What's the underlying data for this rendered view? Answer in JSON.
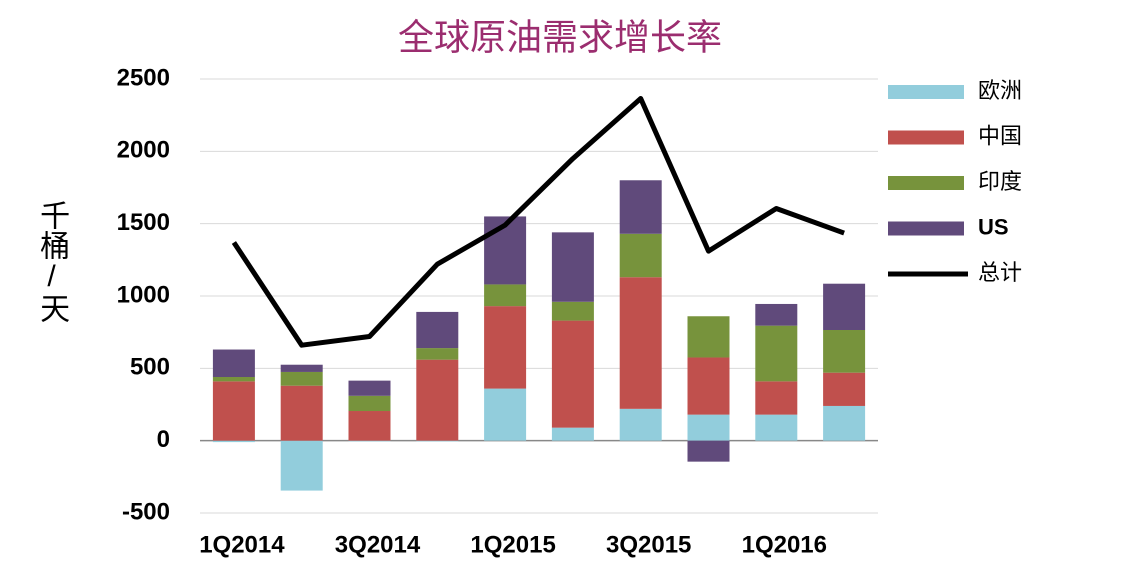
{
  "chart_data": {
    "type": "bar",
    "stacked": true,
    "title": "全球原油需求增长率",
    "y_label": "千桶/天",
    "categories": [
      "1Q2014",
      null,
      "3Q2014",
      null,
      "1Q2015",
      null,
      "3Q2015",
      null,
      "1Q2016",
      null
    ],
    "series": [
      {
        "name": "欧洲",
        "color": "#92cddc",
        "values": [
          -10,
          -345,
          -5,
          -5,
          360,
          90,
          220,
          180,
          180,
          240
        ]
      },
      {
        "name": "中国",
        "color": "#c0504d",
        "values": [
          410,
          380,
          205,
          560,
          570,
          740,
          910,
          395,
          230,
          230
        ]
      },
      {
        "name": "印度",
        "color": "#77933c",
        "values": [
          30,
          95,
          105,
          80,
          150,
          130,
          300,
          285,
          385,
          295
        ]
      },
      {
        "name": "US",
        "color": "#604a7b",
        "values": [
          190,
          50,
          105,
          250,
          470,
          480,
          370,
          -145,
          150,
          320
        ]
      },
      {
        "name": "总计",
        "color": "#000000",
        "type": "line",
        "values": [
          1370,
          660,
          720,
          1220,
          1490,
          1950,
          2365,
          1310,
          1605,
          1435
        ]
      }
    ],
    "ylim": [
      -500,
      2500
    ],
    "yticks": [
      -500,
      0,
      500,
      1000,
      1500,
      2000,
      2500
    ],
    "grid": true
  }
}
